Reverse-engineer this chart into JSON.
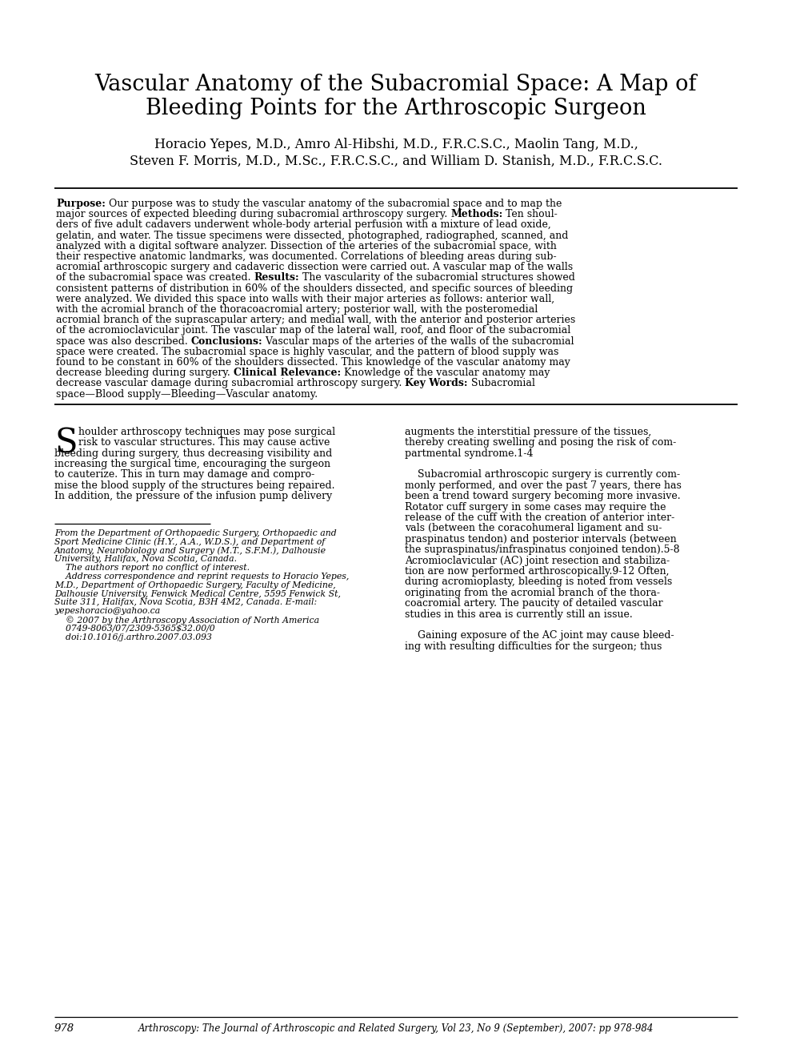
{
  "title_line1": "Vascular Anatomy of the Subacromial Space: A Map of",
  "title_line2": "Bleeding Points for the Arthroscopic Surgeon",
  "authors_line1": "Horacio Yepes, M.D., Amro Al-Hibshi, M.D., F.R.C.S.C., Maolin Tang, M.D.,",
  "authors_line2": "Steven F. Morris, M.D., M.Sc., F.R.C.S.C., and William D. Stanish, M.D., F.R.C.S.C.",
  "abstract_lines": [
    [
      [
        "bold",
        "Purpose:"
      ],
      [
        "normal",
        " Our purpose was to study the vascular anatomy of the subacromial space and to map the"
      ]
    ],
    [
      [
        "normal",
        "major sources of expected bleeding during subacromial arthroscopy surgery. "
      ],
      [
        "bold",
        "Methods:"
      ],
      [
        "normal",
        " Ten shoul-"
      ]
    ],
    [
      [
        "normal",
        "ders of five adult cadavers underwent whole-body arterial perfusion with a mixture of lead oxide,"
      ]
    ],
    [
      [
        "normal",
        "gelatin, and water. The tissue specimens were dissected, photographed, radiographed, scanned, and"
      ]
    ],
    [
      [
        "normal",
        "analyzed with a digital software analyzer. Dissection of the arteries of the subacromial space, with"
      ]
    ],
    [
      [
        "normal",
        "their respective anatomic landmarks, was documented. Correlations of bleeding areas during sub-"
      ]
    ],
    [
      [
        "normal",
        "acromial arthroscopic surgery and cadaveric dissection were carried out. A vascular map of the walls"
      ]
    ],
    [
      [
        "normal",
        "of the subacromial space was created. "
      ],
      [
        "bold",
        "Results:"
      ],
      [
        "normal",
        " The vascularity of the subacromial structures showed"
      ]
    ],
    [
      [
        "normal",
        "consistent patterns of distribution in 60% of the shoulders dissected, and specific sources of bleeding"
      ]
    ],
    [
      [
        "normal",
        "were analyzed. We divided this space into walls with their major arteries as follows: anterior wall,"
      ]
    ],
    [
      [
        "normal",
        "with the acromial branch of the thoracoacromial artery; posterior wall, with the posteromedial"
      ]
    ],
    [
      [
        "normal",
        "acromial branch of the suprascapular artery; and medial wall, with the anterior and posterior arteries"
      ]
    ],
    [
      [
        "normal",
        "of the acromioclavicular joint. The vascular map of the lateral wall, roof, and floor of the subacromial"
      ]
    ],
    [
      [
        "normal",
        "space was also described. "
      ],
      [
        "bold",
        "Conclusions:"
      ],
      [
        "normal",
        " Vascular maps of the arteries of the walls of the subacromial"
      ]
    ],
    [
      [
        "normal",
        "space were created. The subacromial space is highly vascular, and the pattern of blood supply was"
      ]
    ],
    [
      [
        "normal",
        "found to be constant in 60% of the shoulders dissected. This knowledge of the vascular anatomy may"
      ]
    ],
    [
      [
        "normal",
        "decrease bleeding during surgery. "
      ],
      [
        "bold",
        "Clinical Relevance:"
      ],
      [
        "normal",
        " Knowledge of the vascular anatomy may"
      ]
    ],
    [
      [
        "normal",
        "decrease vascular damage during subacromial arthroscopy surgery. "
      ],
      [
        "bold",
        "Key Words:"
      ],
      [
        "normal",
        " Subacromial"
      ]
    ],
    [
      [
        "normal",
        "space—Blood supply—Bleeding—Vascular anatomy."
      ]
    ]
  ],
  "col1_lines": [
    "houlder arthroscopy techniques may pose surgical",
    "risk to vascular structures. This may cause active",
    "bleeding during surgery, thus decreasing visibility and",
    "increasing the surgical time, encouraging the surgeon",
    "to cauterize. This in turn may damage and compro-",
    "mise the blood supply of the structures being repaired.",
    "In addition, the pressure of the infusion pump delivery"
  ],
  "col2_lines": [
    "augments the interstitial pressure of the tissues,",
    "thereby creating swelling and posing the risk of com-",
    "partmental syndrome.1-4",
    "",
    "    Subacromial arthroscopic surgery is currently com-",
    "monly performed, and over the past 7 years, there has",
    "been a trend toward surgery becoming more invasive.",
    "Rotator cuff surgery in some cases may require the",
    "release of the cuff with the creation of anterior inter-",
    "vals (between the coracohumeral ligament and su-",
    "praspinatus tendon) and posterior intervals (between",
    "the supraspinatus/infraspinatus conjoined tendon).5-8",
    "Acromioclavicular (AC) joint resection and stabiliza-",
    "tion are now performed arthroscopically.9-12 Often,",
    "during acromioplasty, bleeding is noted from vessels",
    "originating from the acromial branch of the thora-",
    "coacromial artery. The paucity of detailed vascular",
    "studies in this area is currently still an issue.",
    "",
    "    Gaining exposure of the AC joint may cause bleed-",
    "ing with resulting difficulties for the surgeon; thus"
  ],
  "footnote_lines": [
    "From the Department of Orthopaedic Surgery, Orthopaedic and",
    "Sport Medicine Clinic (H.Y., A.A., W.D.S.), and Department of",
    "Anatomy, Neurobiology and Surgery (M.T., S.F.M.), Dalhousie",
    "University, Halifax, Nova Scotia, Canada.",
    "    The authors report no conflict of interest.",
    "    Address correspondence and reprint requests to Horacio Yepes,",
    "M.D., Department of Orthopaedic Surgery, Faculty of Medicine,",
    "Dalhousie University, Fenwick Medical Centre, 5595 Fenwick St,",
    "Suite 311, Halifax, Nova Scotia, B3H 4M2, Canada. E-mail:",
    "yepeshoracio@yahoo.ca",
    "    © 2007 by the Arthroscopy Association of North America",
    "    0749-8063/07/2309-5365$32.00/0",
    "    doi:10.1016/j.arthro.2007.03.093"
  ],
  "footer_page": "978",
  "footer_journal": "Arthroscopy: The Journal of Arthroscopic and Related Surgery, Vol 23, No 9 (September), 2007: pp 978-984",
  "bg_color": "#ffffff",
  "text_color": "#000000",
  "title_fontsize": 19.5,
  "authors_fontsize": 11.5,
  "abstract_fontsize": 9.0,
  "body_fontsize": 9.0,
  "footnote_fontsize": 7.8,
  "footer_fontsize": 9.5
}
